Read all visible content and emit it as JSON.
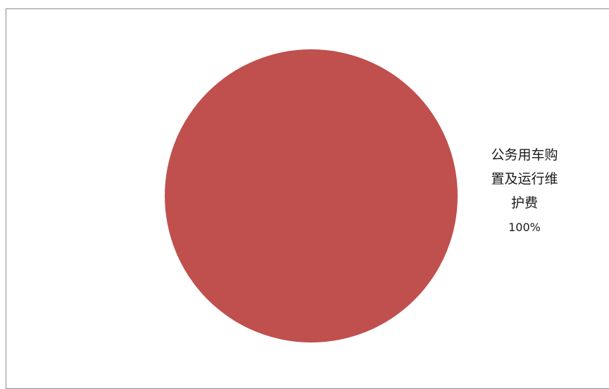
{
  "chart_data": {
    "type": "pie",
    "slices": [
      {
        "label_lines": [
          "公务用车购",
          "置及运行维",
          "护费"
        ],
        "value": 100,
        "percent_label": "100%",
        "color": "#c0504d"
      }
    ]
  }
}
